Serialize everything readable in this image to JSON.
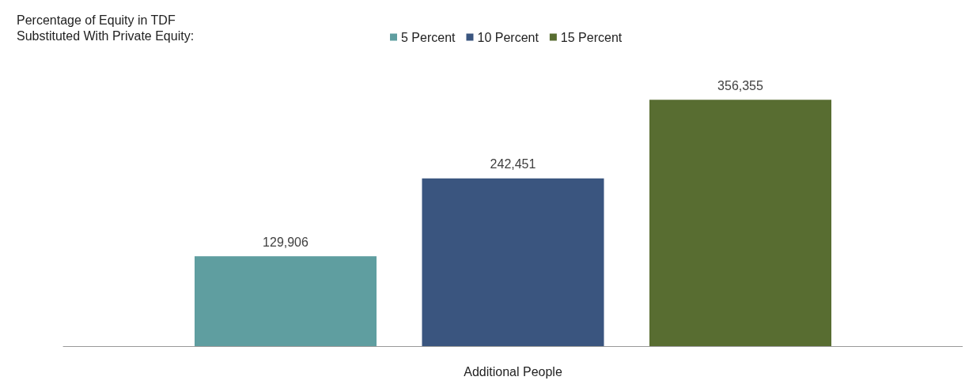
{
  "chart_data": {
    "type": "bar",
    "legend_title": "Percentage of Equity in TDF Substituted With Private Equity:",
    "categories": [
      null
    ],
    "xlabel": "Additional People",
    "series": [
      {
        "name": "5 Percent",
        "color": "#5f9ea0",
        "values": [
          129906
        ],
        "value_labels": [
          "129,906"
        ]
      },
      {
        "name": "10 Percent",
        "color": "#3a557f",
        "values": [
          242451
        ],
        "value_labels": [
          "242,451"
        ]
      },
      {
        "name": "15 Percent",
        "color": "#586d31",
        "values": [
          356355
        ],
        "value_labels": [
          "356,355"
        ]
      }
    ],
    "legend": "top"
  }
}
